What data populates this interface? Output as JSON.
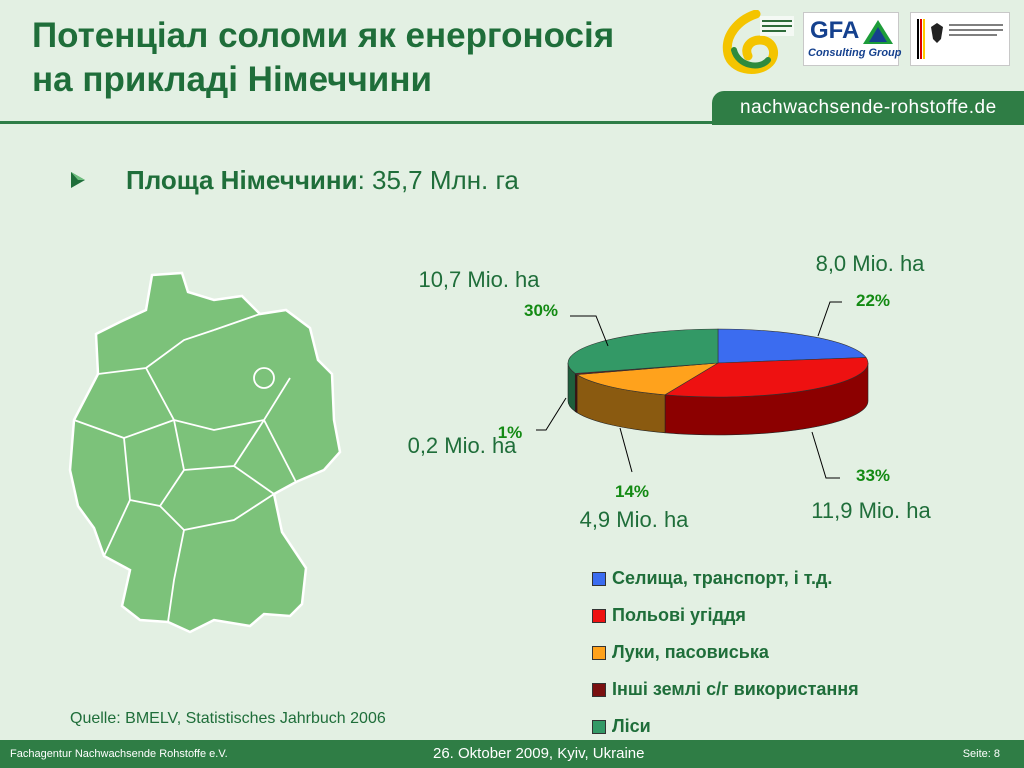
{
  "header": {
    "title_line1": "Потенціал соломи як енергоносія",
    "title_line2": "на прикладі Німеччини",
    "banner": "nachwachsende-rohstoffe.de"
  },
  "logos": {
    "gfa_name": "GFA",
    "gfa_subtitle": "Consulting Group"
  },
  "bullet": {
    "label_bold": "Площа Німеччини",
    "value": ": 35,7 Млн. га"
  },
  "chart_data": {
    "type": "pie",
    "categories": [
      "Селища, транспорт, і т.д.",
      "Польові угіддя",
      "Луки, пасовиська",
      "Інші землі с/г використання",
      "Ліси"
    ],
    "values": [
      8.0,
      11.9,
      4.9,
      0.2,
      10.7
    ],
    "unit": "Mio. ha",
    "value_labels": [
      "8,0 Mio. ha",
      "11,9 Mio. ha",
      "4,9 Mio. ha",
      "0,2 Mio. ha",
      "10,7 Mio. ha"
    ],
    "percent_labels": [
      "22%",
      "33%",
      "14%",
      "1%",
      "30%"
    ],
    "colors": [
      "#3b6cf0",
      "#ee1111",
      "#ffa21c",
      "#7a1010",
      "#339966"
    ],
    "side_colors": [
      "#2040a0",
      "#8c0000",
      "#8a5a10",
      "#4a0808",
      "#1e5e3c"
    ],
    "legend_placement": "bottom-right"
  },
  "source": "Quelle: BMELV, Statistisches Jahrbuch  2006",
  "footer": {
    "left": "Fachagentur Nachwachsende Rohstoffe e.V.",
    "center": "26. Oktober 2009, Kyiv, Ukraine",
    "right": "Seite: 8"
  }
}
